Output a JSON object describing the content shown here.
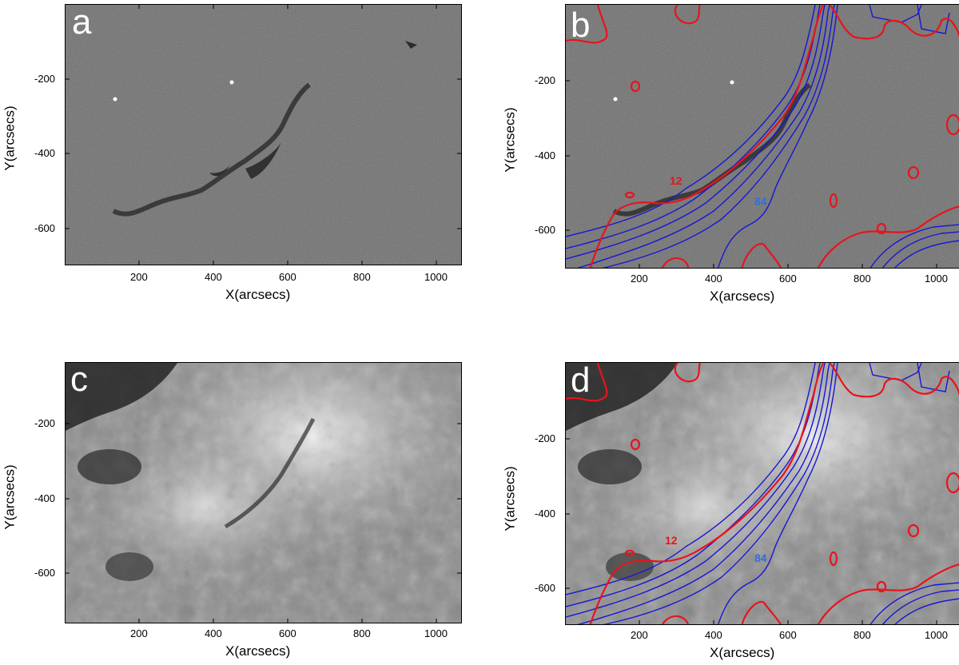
{
  "colors": {
    "magnetogram_bg": "#6e6e6e",
    "euv_bg": "#8a8a8a",
    "red_contour": "#e8141c",
    "blue_contour": "#1616d8",
    "blue_label": "#2f6ee0",
    "red_label": "#e8141c"
  },
  "figure": {
    "panels": [
      {
        "letter": "a",
        "image": "magnetogram",
        "contours": false,
        "xlabel": "X(arcsecs)",
        "ylabel": "Y(arcsecs)",
        "x_ticks": [
          "200",
          "400",
          "600",
          "800",
          "1000"
        ],
        "y_ticks": [
          "-200",
          "-400",
          "-600"
        ]
      },
      {
        "letter": "b",
        "image": "magnetogram",
        "contours": true,
        "red_contour_label": "12",
        "blue_contour_label": "84",
        "xlabel": "X(arcsecs)",
        "ylabel": "Y(arcsecs)",
        "x_ticks": [
          "200",
          "400",
          "600",
          "800",
          "1000"
        ],
        "y_ticks": [
          "-200",
          "-400",
          "-600"
        ]
      },
      {
        "letter": "c",
        "image": "euv",
        "contours": false,
        "xlabel": "X(arcsecs)",
        "ylabel": "Y(arcsecs)",
        "x_ticks": [
          "200",
          "400",
          "600",
          "800",
          "1000"
        ],
        "y_ticks": [
          "-200",
          "-400",
          "-600"
        ]
      },
      {
        "letter": "d",
        "image": "euv",
        "contours": true,
        "red_contour_label": "12",
        "blue_contour_label": "84",
        "xlabel": "X(arcsecs)",
        "ylabel": "Y(arcsecs)",
        "x_ticks": [
          "200",
          "400",
          "600",
          "800",
          "1000"
        ],
        "y_ticks": [
          "-200",
          "-400",
          "-600"
        ]
      }
    ],
    "x_tick_values": [
      200,
      400,
      600,
      800,
      1000
    ],
    "y_tick_values": [
      -200,
      -400,
      -600
    ],
    "x_range": [
      5,
      1060
    ],
    "y_range": [
      -705,
      -5
    ]
  }
}
